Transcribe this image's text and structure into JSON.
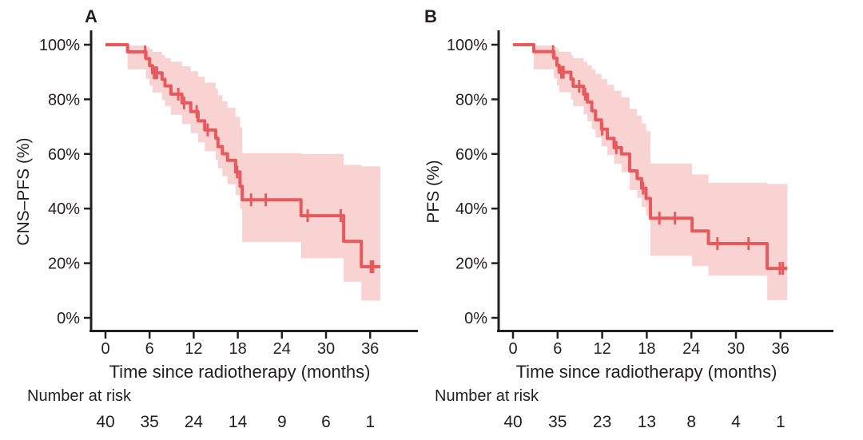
{
  "figure_colors": {
    "curve": "#e7595c",
    "confidence_band": "#f9d2d2",
    "axis_and_text": "#231f20",
    "background": "#ffffff"
  },
  "chart_data": [
    {
      "type": "line",
      "subtype": "kaplan-meier-step-curve",
      "title": "A",
      "ylabel": "CNS–PFS (%)",
      "xlabel": "Time since radiotherapy (months)",
      "x_ticks": [
        0,
        6,
        12,
        18,
        24,
        30,
        36
      ],
      "y_ticks": [
        "0%",
        "20%",
        "40%",
        "60%",
        "80%",
        "100%"
      ],
      "y_tick_values": [
        0,
        20,
        40,
        60,
        80,
        100
      ],
      "xlim": [
        0,
        42
      ],
      "ylim": [
        0,
        100
      ],
      "grid": false,
      "legend": "none",
      "series": [
        {
          "name": "CNS-PFS survival probability (%)",
          "end_time": 37.4,
          "step_points": [
            [
              0,
              100
            ],
            [
              3.0,
              97.4
            ],
            [
              5.5,
              94.9
            ],
            [
              6.0,
              92.3
            ],
            [
              6.4,
              89.7
            ],
            [
              7.7,
              87.3
            ],
            [
              8.1,
              84.9
            ],
            [
              8.9,
              81.9
            ],
            [
              10.4,
              78.7
            ],
            [
              11.6,
              75.5
            ],
            [
              12.6,
              72.1
            ],
            [
              13.5,
              68.8
            ],
            [
              15.0,
              65.8
            ],
            [
              15.3,
              62.7
            ],
            [
              15.9,
              60.1
            ],
            [
              16.6,
              57.7
            ],
            [
              17.7,
              53.4
            ],
            [
              18.3,
              48.2
            ],
            [
              18.6,
              43.2
            ],
            [
              26.6,
              37.4
            ],
            [
              32.4,
              28.0
            ],
            [
              34.8,
              18.7
            ]
          ]
        }
      ],
      "censor_marks": [
        [
          5.4,
          97.4
        ],
        [
          6.6,
          89.7
        ],
        [
          6.8,
          89.7
        ],
        [
          7.0,
          89.7
        ],
        [
          9.9,
          81.9
        ],
        [
          10.7,
          78.7
        ],
        [
          12.4,
          75.5
        ],
        [
          13.9,
          68.8
        ],
        [
          17.9,
          53.4
        ],
        [
          19.8,
          43.2
        ],
        [
          21.8,
          43.2
        ],
        [
          27.5,
          37.4
        ],
        [
          32.0,
          37.4
        ],
        [
          36.1,
          18.7
        ],
        [
          36.4,
          18.7
        ]
      ],
      "confidence_band": [
        [
          3.0,
          99.7,
          91.0
        ],
        [
          5.5,
          99.2,
          87.5
        ],
        [
          6.0,
          98.4,
          85.0
        ],
        [
          6.4,
          97.4,
          82.5
        ],
        [
          7.7,
          96.2,
          79.8
        ],
        [
          8.1,
          95.1,
          77.5
        ],
        [
          8.9,
          93.8,
          74.3
        ],
        [
          10.4,
          92.1,
          71.0
        ],
        [
          11.6,
          90.3,
          67.7
        ],
        [
          12.6,
          88.3,
          64.3
        ],
        [
          13.5,
          86.1,
          61.0
        ],
        [
          15.0,
          83.9,
          57.9
        ],
        [
          15.3,
          81.5,
          54.7
        ],
        [
          15.9,
          79.3,
          51.8
        ],
        [
          16.6,
          77.0,
          48.9
        ],
        [
          17.7,
          73.6,
          44.9
        ],
        [
          18.3,
          69.8,
          40.0
        ],
        [
          18.6,
          60.3,
          27.8
        ],
        [
          26.6,
          60.0,
          21.8
        ],
        [
          32.4,
          56.0,
          13.2
        ],
        [
          34.8,
          55.5,
          6.3
        ]
      ],
      "number_at_risk": {
        "label": "Number at risk",
        "times": [
          0,
          6,
          12,
          18,
          24,
          30,
          36
        ],
        "values": [
          40,
          35,
          24,
          14,
          9,
          6,
          1
        ]
      }
    },
    {
      "type": "line",
      "subtype": "kaplan-meier-step-curve",
      "title": "B",
      "ylabel": "PFS (%)",
      "xlabel": "Time since radiotherapy (months)",
      "x_ticks": [
        0,
        6,
        12,
        18,
        24,
        30,
        36
      ],
      "y_ticks": [
        "0%",
        "20%",
        "40%",
        "60%",
        "80%",
        "100%"
      ],
      "y_tick_values": [
        0,
        20,
        40,
        60,
        80,
        100
      ],
      "xlim": [
        0,
        42
      ],
      "ylim": [
        0,
        100
      ],
      "grid": false,
      "legend": "none",
      "series": [
        {
          "name": "PFS survival probability (%)",
          "end_time": 36.9,
          "step_points": [
            [
              0,
              100
            ],
            [
              2.8,
              97.5
            ],
            [
              5.5,
              95.1
            ],
            [
              5.9,
              92.5
            ],
            [
              6.2,
              89.9
            ],
            [
              7.8,
              87.4
            ],
            [
              8.1,
              84.8
            ],
            [
              9.5,
              81.9
            ],
            [
              10.0,
              79.0
            ],
            [
              10.6,
              75.8
            ],
            [
              11.1,
              72.5
            ],
            [
              11.9,
              69.1
            ],
            [
              12.7,
              65.7
            ],
            [
              13.6,
              62.3
            ],
            [
              14.6,
              60.0
            ],
            [
              15.7,
              53.8
            ],
            [
              16.7,
              51.0
            ],
            [
              17.3,
              47.5
            ],
            [
              17.9,
              43.7
            ],
            [
              18.5,
              36.5
            ],
            [
              24.1,
              31.8
            ],
            [
              26.3,
              27.2
            ],
            [
              34.2,
              18.1
            ]
          ]
        }
      ],
      "censor_marks": [
        [
          5.4,
          97.5
        ],
        [
          6.5,
          89.9
        ],
        [
          6.8,
          89.9
        ],
        [
          8.9,
          84.8
        ],
        [
          9.7,
          81.9
        ],
        [
          12.0,
          69.1
        ],
        [
          13.9,
          62.3
        ],
        [
          17.5,
          47.5
        ],
        [
          19.7,
          36.5
        ],
        [
          21.8,
          36.5
        ],
        [
          27.5,
          27.2
        ],
        [
          31.7,
          27.2
        ],
        [
          35.9,
          18.1
        ],
        [
          36.3,
          18.1
        ]
      ],
      "confidence_band": [
        [
          2.8,
          99.7,
          91.0
        ],
        [
          5.5,
          99.2,
          87.6
        ],
        [
          5.9,
          98.4,
          85.1
        ],
        [
          6.2,
          97.4,
          82.6
        ],
        [
          7.8,
          96.2,
          79.9
        ],
        [
          8.1,
          95.1,
          77.5
        ],
        [
          9.5,
          93.8,
          74.5
        ],
        [
          10.0,
          92.5,
          72.0
        ],
        [
          10.6,
          91.0,
          69.0
        ],
        [
          11.1,
          89.3,
          66.0
        ],
        [
          11.9,
          87.4,
          62.8
        ],
        [
          12.7,
          85.3,
          59.6
        ],
        [
          13.6,
          83.1,
          56.4
        ],
        [
          14.6,
          80.8,
          53.3
        ],
        [
          15.7,
          76.5,
          46.8
        ],
        [
          16.7,
          74.0,
          43.9
        ],
        [
          17.3,
          71.2,
          40.6
        ],
        [
          17.9,
          68.3,
          37.4
        ],
        [
          18.5,
          56.5,
          22.7
        ],
        [
          24.1,
          52.5,
          19.0
        ],
        [
          26.3,
          49.5,
          15.5
        ],
        [
          34.2,
          49.0,
          6.5
        ]
      ],
      "number_at_risk": {
        "label": "Number at risk",
        "times": [
          0,
          6,
          12,
          18,
          24,
          30,
          36
        ],
        "values": [
          40,
          35,
          23,
          13,
          8,
          4,
          1
        ]
      }
    }
  ]
}
